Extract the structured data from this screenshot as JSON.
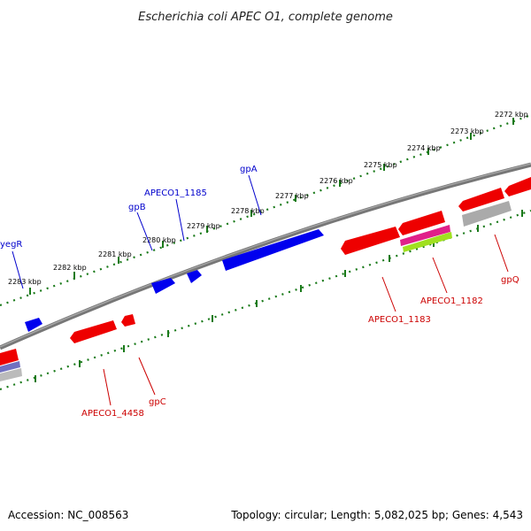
{
  "title": "Escherichia coli APEC O1, complete genome",
  "accession": "Accession: NC_008563",
  "summary": "Topology: circular; Length: 5,082,025 bp; Genes: 4,543",
  "ticks": [
    {
      "label": "2272 kbp"
    },
    {
      "label": "2273 kbp"
    },
    {
      "label": "2274 kbp"
    },
    {
      "label": "2275 kbp"
    },
    {
      "label": "2276 kbp"
    },
    {
      "label": "2277 kbp"
    },
    {
      "label": "2278 kbp"
    },
    {
      "label": "2279 kbp"
    },
    {
      "label": "2280 kbp"
    },
    {
      "label": "2281 kbp"
    },
    {
      "label": "2282 kbp"
    },
    {
      "label": "2283 kbp"
    }
  ],
  "gene_labels": {
    "yegR": "yegR",
    "gpB": "gpB",
    "APECO1_1185": "APECO1_1185",
    "gpA": "gpA",
    "APECO1_4458": "APECO1_4458",
    "gpC": "gpC",
    "APECO1_1183": "APECO1_1183",
    "APECO1_1182": "APECO1_1182",
    "gpQ": "gpQ"
  },
  "colors": {
    "forward_gene": "#0000ee",
    "reverse_gene": "#ee0000",
    "backbone": "#777777",
    "tick": "#1a7a1a",
    "gray_feature": "#aaaaaa",
    "magenta_feature": "#e0208a",
    "green_feature": "#a0e020",
    "purple_feature": "#7070c0"
  }
}
